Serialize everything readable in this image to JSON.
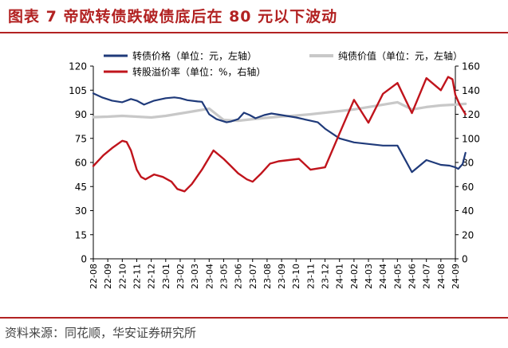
{
  "title": "图表 7  帝欧转债跌破债底后在 80 元以下波动",
  "source": "资料来源：同花顺，华安证券研究所",
  "colors": {
    "accent": "#b22222",
    "convertible_price": "#1f3a7a",
    "pure_bond_value": "#c8c8c8",
    "conversion_premium": "#c0141c",
    "axis": "#000000",
    "text": "#000000"
  },
  "chart_data": {
    "type": "line",
    "x_label_months": [
      "22-08",
      "22-09",
      "22-10",
      "22-11",
      "22-12",
      "23-01",
      "23-02",
      "23-03",
      "23-04",
      "23-05",
      "23-06",
      "23-07",
      "23-08",
      "23-09",
      "23-10",
      "23-11",
      "23-12",
      "24-01",
      "24-02",
      "24-03",
      "24-04",
      "24-05",
      "24-06",
      "24-07",
      "24-08",
      "24-09"
    ],
    "ylim_left": [
      0,
      120
    ],
    "yticks_left": [
      0,
      15,
      30,
      45,
      60,
      75,
      90,
      105,
      120
    ],
    "ylim_right": [
      0,
      160
    ],
    "yticks_right": [
      0,
      20,
      40,
      60,
      80,
      100,
      120,
      140,
      160
    ],
    "grid": false,
    "legend_position": "top",
    "series": [
      {
        "name": "转债价格（单位：元，左轴）",
        "axis": "left",
        "color_key": "convertible_price",
        "points": [
          [
            0,
            103
          ],
          [
            0.6,
            100.5
          ],
          [
            1.3,
            98.5
          ],
          [
            2,
            97.5
          ],
          [
            2.6,
            99.5
          ],
          [
            3,
            98.5
          ],
          [
            3.5,
            96
          ],
          [
            4.2,
            98.5
          ],
          [
            5,
            100
          ],
          [
            5.6,
            100.5
          ],
          [
            6,
            100
          ],
          [
            6.5,
            98.8
          ],
          [
            7.2,
            98
          ],
          [
            7.5,
            97.8
          ],
          [
            8,
            90
          ],
          [
            8.5,
            87
          ],
          [
            9.2,
            85
          ],
          [
            9.5,
            85.5
          ],
          [
            10,
            87
          ],
          [
            10.4,
            91
          ],
          [
            10.8,
            89.5
          ],
          [
            11.2,
            87.5
          ],
          [
            11.8,
            89.5
          ],
          [
            12.3,
            90.5
          ],
          [
            13,
            89.5
          ],
          [
            14,
            88
          ],
          [
            15,
            86
          ],
          [
            15.5,
            85
          ],
          [
            16,
            81
          ],
          [
            17,
            75
          ],
          [
            18,
            72.5
          ],
          [
            19,
            71.5
          ],
          [
            20,
            70.5
          ],
          [
            21,
            70.5
          ],
          [
            22,
            54
          ],
          [
            23,
            61.5
          ],
          [
            24,
            58.5
          ],
          [
            24.6,
            58
          ],
          [
            25,
            57
          ],
          [
            25.2,
            56
          ],
          [
            25.5,
            59
          ],
          [
            25.7,
            66
          ]
        ]
      },
      {
        "name": "纯债价值（单位：元，左轴）",
        "axis": "left",
        "color_key": "pure_bond_value",
        "points": [
          [
            0,
            88.2
          ],
          [
            1,
            88.5
          ],
          [
            2,
            89
          ],
          [
            3,
            88.5
          ],
          [
            4,
            88
          ],
          [
            5,
            89
          ],
          [
            6,
            90.5
          ],
          [
            7,
            92
          ],
          [
            8,
            93.5
          ],
          [
            9,
            86.5
          ],
          [
            10,
            86
          ],
          [
            11,
            87
          ],
          [
            12,
            87.8
          ],
          [
            13,
            88.6
          ],
          [
            14,
            89.2
          ],
          [
            15,
            90
          ],
          [
            16,
            91
          ],
          [
            17,
            92
          ],
          [
            18,
            93
          ],
          [
            19,
            94.5
          ],
          [
            20,
            96
          ],
          [
            21,
            97.5
          ],
          [
            22,
            93
          ],
          [
            23,
            94.5
          ],
          [
            24,
            95.5
          ],
          [
            25,
            96
          ],
          [
            25.7,
            96.5
          ]
        ]
      },
      {
        "name": "转股溢价率（单位：%，右轴）",
        "axis": "right",
        "color_key": "conversion_premium",
        "points": [
          [
            0,
            77
          ],
          [
            0.7,
            86
          ],
          [
            1.3,
            92
          ],
          [
            2,
            98
          ],
          [
            2.3,
            97
          ],
          [
            2.6,
            90
          ],
          [
            3,
            74
          ],
          [
            3.3,
            68
          ],
          [
            3.6,
            66
          ],
          [
            4.2,
            70
          ],
          [
            4.8,
            68
          ],
          [
            5.4,
            64
          ],
          [
            5.8,
            58
          ],
          [
            6.3,
            56
          ],
          [
            6.8,
            62
          ],
          [
            7.5,
            74
          ],
          [
            8.3,
            90
          ],
          [
            9,
            83
          ],
          [
            9.5,
            77
          ],
          [
            10,
            71
          ],
          [
            10.6,
            66
          ],
          [
            11,
            64
          ],
          [
            11.6,
            71
          ],
          [
            12.2,
            79
          ],
          [
            12.8,
            81
          ],
          [
            13.5,
            82
          ],
          [
            14.2,
            83
          ],
          [
            15,
            74
          ],
          [
            16,
            76
          ],
          [
            17,
            104
          ],
          [
            18,
            132
          ],
          [
            19,
            113
          ],
          [
            20,
            137
          ],
          [
            21,
            146
          ],
          [
            22,
            121
          ],
          [
            23,
            150
          ],
          [
            24,
            140
          ],
          [
            24.5,
            151
          ],
          [
            24.8,
            149
          ],
          [
            25,
            136
          ],
          [
            25.3,
            128
          ],
          [
            25.7,
            120
          ]
        ]
      }
    ]
  }
}
